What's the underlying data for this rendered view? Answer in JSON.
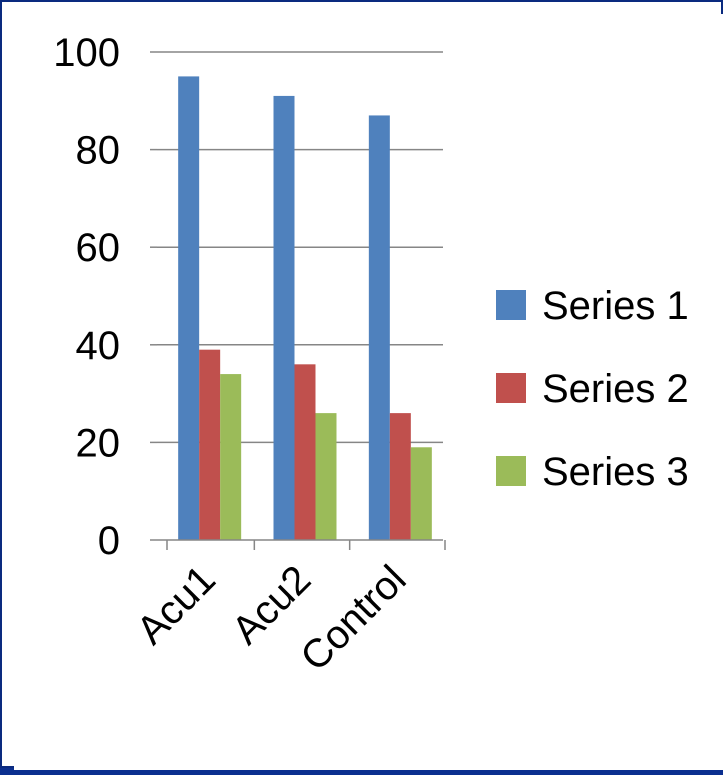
{
  "chart_data": {
    "type": "bar",
    "categories": [
      "Acu1",
      "Acu2",
      "Control"
    ],
    "series": [
      {
        "name": "Series 1",
        "values": [
          95,
          91,
          87
        ],
        "color": "#4f81bd"
      },
      {
        "name": "Series 2",
        "values": [
          39,
          36,
          26
        ],
        "color": "#c0504d"
      },
      {
        "name": "Series 3",
        "values": [
          34,
          26,
          19
        ],
        "color": "#9bbb59"
      }
    ],
    "ylim": [
      0,
      100
    ],
    "yticks": [
      "0",
      "20",
      "40",
      "60",
      "80",
      "100"
    ],
    "grid": true,
    "legend_position": "right",
    "title": "",
    "xlabel": "",
    "ylabel": ""
  }
}
